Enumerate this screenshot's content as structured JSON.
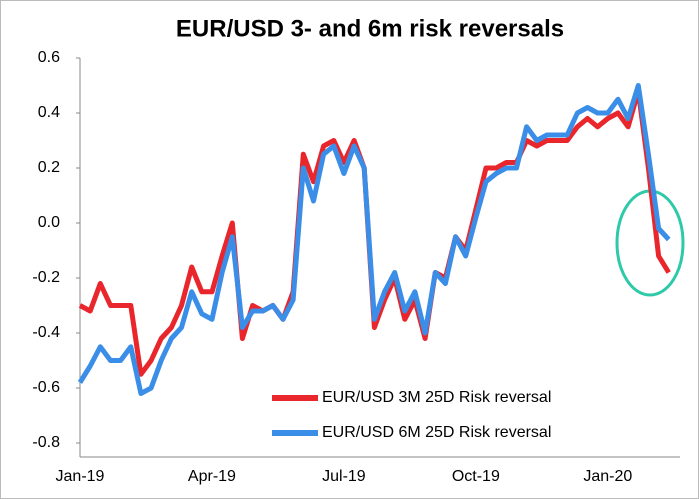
{
  "chart_data": {
    "type": "line",
    "title": "EUR/USD 3- and 6m risk reversals",
    "categories": [
      "Jan-19",
      null,
      null,
      null,
      null,
      null,
      null,
      null,
      null,
      null,
      null,
      null,
      null,
      "Apr-19",
      null,
      null,
      null,
      null,
      null,
      null,
      null,
      null,
      null,
      null,
      null,
      null,
      "Jul-19",
      null,
      null,
      null,
      null,
      null,
      null,
      null,
      null,
      null,
      null,
      null,
      null,
      "Oct-19",
      null,
      null,
      null,
      null,
      null,
      null,
      null,
      null,
      null,
      null,
      null,
      null,
      "Jan-20",
      null,
      null,
      null,
      null,
      null,
      null
    ],
    "series": [
      {
        "name": "EUR/USD 3M 25D Risk reversal",
        "color": "#e8262b",
        "values": [
          -0.3,
          -0.32,
          -0.22,
          -0.3,
          -0.3,
          -0.3,
          -0.55,
          -0.5,
          -0.42,
          -0.38,
          -0.3,
          -0.16,
          -0.25,
          -0.25,
          -0.12,
          0.0,
          -0.42,
          -0.3,
          -0.32,
          -0.3,
          -0.35,
          -0.25,
          0.25,
          0.15,
          0.28,
          0.3,
          0.22,
          0.3,
          0.2,
          -0.38,
          -0.28,
          -0.2,
          -0.35,
          -0.28,
          -0.42,
          -0.18,
          -0.2,
          -0.05,
          -0.1,
          0.05,
          0.2,
          0.2,
          0.22,
          0.22,
          0.3,
          0.28,
          0.3,
          0.3,
          0.3,
          0.35,
          0.38,
          0.35,
          0.38,
          0.4,
          0.35,
          0.48,
          0.2,
          -0.12,
          -0.18
        ]
      },
      {
        "name": "EUR/USD 6M 25D Risk reversal",
        "color": "#3b8ee8",
        "values": [
          -0.58,
          -0.52,
          -0.45,
          -0.5,
          -0.5,
          -0.45,
          -0.62,
          -0.6,
          -0.5,
          -0.42,
          -0.38,
          -0.25,
          -0.33,
          -0.35,
          -0.18,
          -0.05,
          -0.38,
          -0.32,
          -0.32,
          -0.3,
          -0.35,
          -0.28,
          0.2,
          0.08,
          0.25,
          0.28,
          0.18,
          0.28,
          0.2,
          -0.35,
          -0.25,
          -0.18,
          -0.32,
          -0.25,
          -0.4,
          -0.18,
          -0.22,
          -0.05,
          -0.12,
          0.02,
          0.15,
          0.18,
          0.2,
          0.2,
          0.35,
          0.3,
          0.32,
          0.32,
          0.32,
          0.4,
          0.42,
          0.4,
          0.4,
          0.45,
          0.38,
          0.5,
          0.25,
          -0.02,
          -0.06
        ]
      }
    ],
    "ylim": [
      -0.8,
      0.6
    ],
    "yticks": [
      -0.8,
      -0.6,
      -0.4,
      -0.2,
      {
        "value": 0,
        "label": "0.0"
      },
      0.2,
      0.4,
      0.6
    ],
    "grid": false
  }
}
